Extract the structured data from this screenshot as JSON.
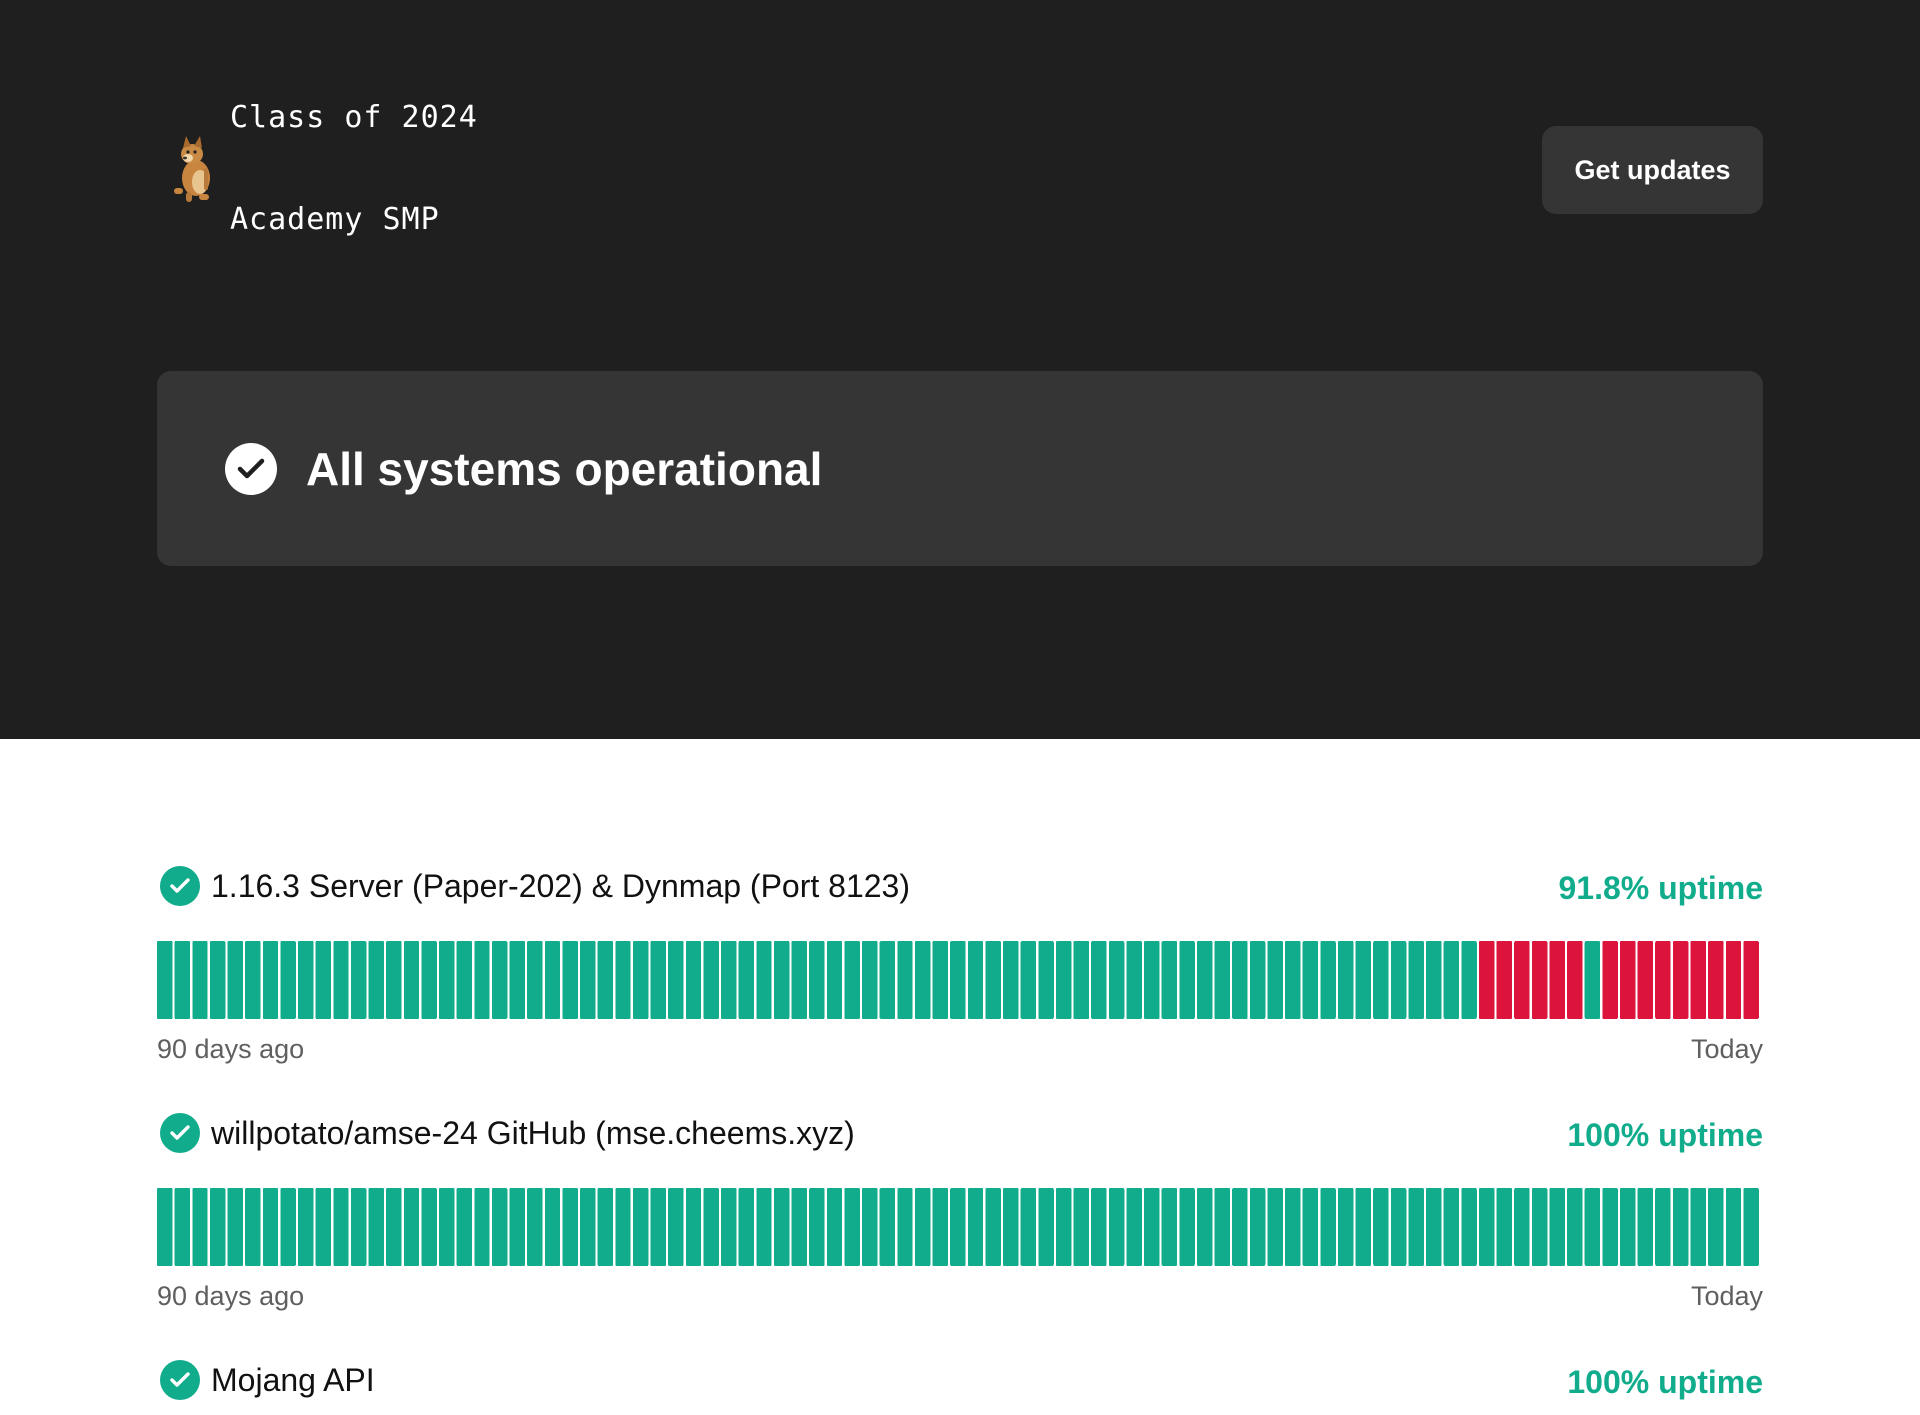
{
  "brand": {
    "logo_icon": "cheems-dog-icon",
    "title_line1": "Class of 2024",
    "title_line2": "Academy SMP"
  },
  "header": {
    "updates_button": "Get updates"
  },
  "status": {
    "icon": "check-circle-icon",
    "text": "All systems operational"
  },
  "colors": {
    "hero_bg": "#1f1f1f",
    "panel_bg": "#353535",
    "up": "#10ac8c",
    "down": "#dc143c"
  },
  "monitors": [
    {
      "name": "1.16.3 Server (Paper-202) & Dynmap (Port 8123)",
      "uptime": "91.8% uptime",
      "range_start": "90 days ago",
      "range_end": "Today",
      "days": [
        "up",
        "up",
        "up",
        "up",
        "up",
        "up",
        "up",
        "up",
        "up",
        "up",
        "up",
        "up",
        "up",
        "up",
        "up",
        "up",
        "up",
        "up",
        "up",
        "up",
        "up",
        "up",
        "up",
        "up",
        "up",
        "up",
        "up",
        "up",
        "up",
        "up",
        "up",
        "up",
        "up",
        "up",
        "up",
        "up",
        "up",
        "up",
        "up",
        "up",
        "up",
        "up",
        "up",
        "up",
        "up",
        "up",
        "up",
        "up",
        "up",
        "up",
        "up",
        "up",
        "up",
        "up",
        "up",
        "up",
        "up",
        "up",
        "up",
        "up",
        "up",
        "up",
        "up",
        "up",
        "up",
        "up",
        "up",
        "up",
        "up",
        "up",
        "up",
        "up",
        "up",
        "up",
        "up",
        "down",
        "down",
        "down",
        "down",
        "down",
        "down",
        "up",
        "down",
        "down",
        "down",
        "down",
        "down",
        "down",
        "down",
        "down",
        "down"
      ]
    },
    {
      "name": "willpotato/amse-24 GitHub (mse.cheems.xyz)",
      "uptime": "100% uptime",
      "range_start": "90 days ago",
      "range_end": "Today",
      "days": [
        "up",
        "up",
        "up",
        "up",
        "up",
        "up",
        "up",
        "up",
        "up",
        "up",
        "up",
        "up",
        "up",
        "up",
        "up",
        "up",
        "up",
        "up",
        "up",
        "up",
        "up",
        "up",
        "up",
        "up",
        "up",
        "up",
        "up",
        "up",
        "up",
        "up",
        "up",
        "up",
        "up",
        "up",
        "up",
        "up",
        "up",
        "up",
        "up",
        "up",
        "up",
        "up",
        "up",
        "up",
        "up",
        "up",
        "up",
        "up",
        "up",
        "up",
        "up",
        "up",
        "up",
        "up",
        "up",
        "up",
        "up",
        "up",
        "up",
        "up",
        "up",
        "up",
        "up",
        "up",
        "up",
        "up",
        "up",
        "up",
        "up",
        "up",
        "up",
        "up",
        "up",
        "up",
        "up",
        "up",
        "up",
        "up",
        "up",
        "up",
        "up",
        "up",
        "up",
        "up",
        "up",
        "up",
        "up",
        "up",
        "up",
        "up",
        "up"
      ]
    },
    {
      "name": "Mojang API",
      "uptime": "100% uptime"
    }
  ]
}
